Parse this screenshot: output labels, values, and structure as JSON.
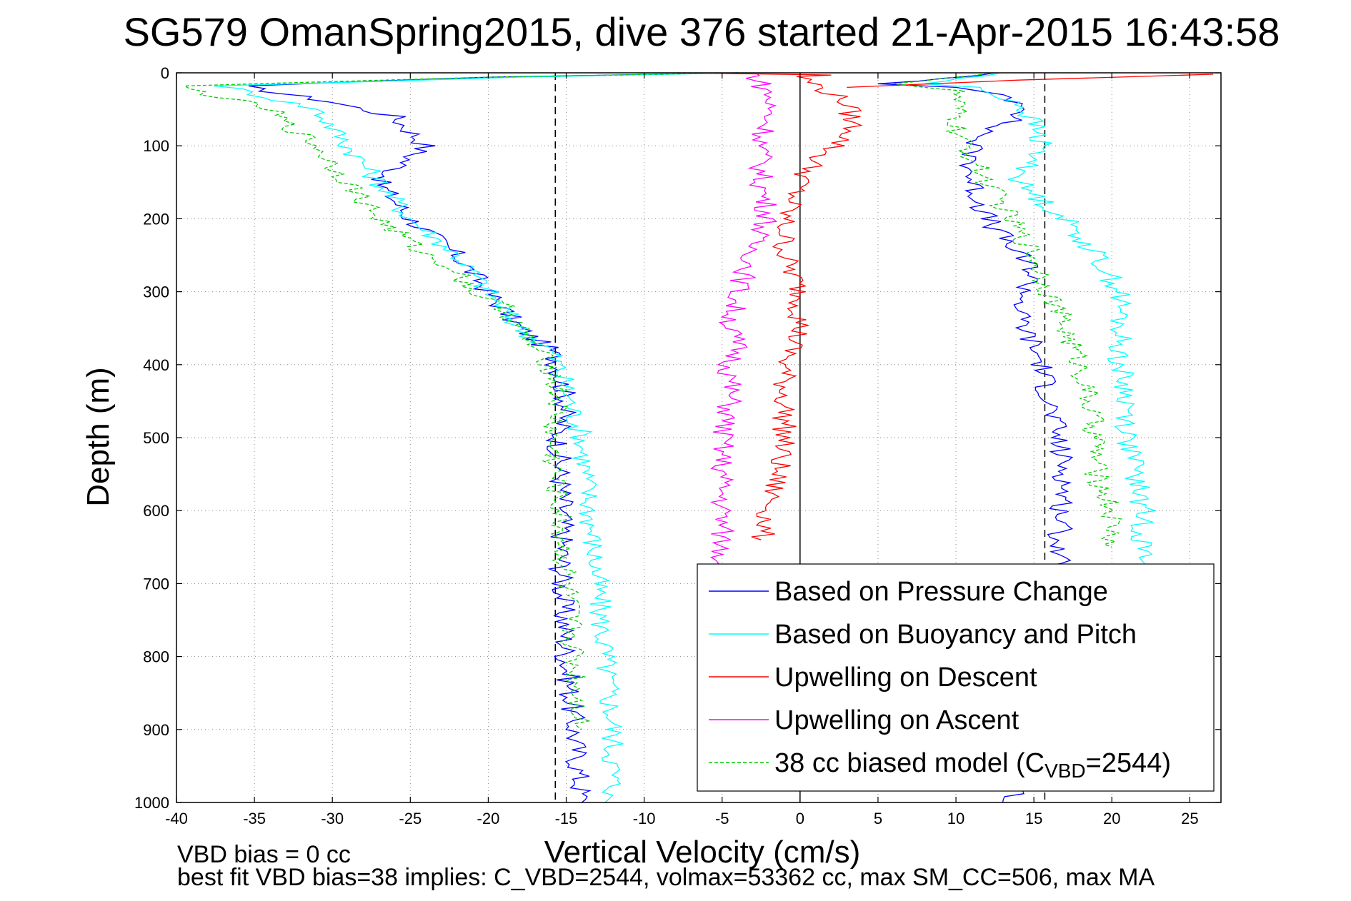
{
  "chart_data": {
    "type": "line",
    "title": "SG579 OmanSpring2015, dive 376 started 21-Apr-2015 16:43:58",
    "xlabel": "Vertical Velocity (cm/s)",
    "ylabel": "Depth (m)",
    "xlim": [
      -40,
      27
    ],
    "ylim": [
      0,
      1000
    ],
    "y_reversed": true,
    "grid": true,
    "x_ticks": [
      -40,
      -35,
      -30,
      -25,
      -20,
      -15,
      -10,
      -5,
      0,
      5,
      10,
      15,
      20,
      25
    ],
    "y_ticks": [
      0,
      100,
      200,
      300,
      400,
      500,
      600,
      700,
      800,
      900,
      1000
    ],
    "legend_position": "bottom-right",
    "reference_lines": [
      {
        "x": -15.7,
        "style": "dashed",
        "color": "#000000"
      },
      {
        "x": 15.7,
        "style": "dashed",
        "color": "#000000"
      },
      {
        "x": 0,
        "style": "solid",
        "color": "#000000"
      }
    ],
    "series": [
      {
        "name": "Based on Pressure Change",
        "color": "#0000ff",
        "style": "solid",
        "legs": [
          {
            "x": [
              -4,
              -20,
              -36,
              -30,
              -26,
              -24,
              -27,
              -25,
              -22,
              -20,
              -18,
              -16,
              -15.5,
              -15,
              -15.5,
              -15.2,
              -15.3,
              -15,
              -14.5,
              -14
            ],
            "y": [
              0,
              6,
              18,
              40,
              60,
              100,
              150,
              200,
              250,
              300,
              350,
              380,
              400,
              450,
              500,
              600,
              700,
              800,
              900,
              1000
            ]
          },
          {
            "x": [
              13,
              5,
              10,
              13,
              15,
              12,
              11,
              11,
              12,
              14,
              15,
              14,
              15.5,
              16,
              16.5,
              17,
              16.5,
              18,
              19,
              21,
              13
            ],
            "y": [
              0,
              15,
              20,
              30,
              50,
              80,
              100,
              150,
              200,
              250,
              270,
              330,
              400,
              450,
              500,
              550,
              680,
              700,
              800,
              900,
              1000
            ]
          }
        ]
      },
      {
        "name": "Based on Buoyancy and Pitch",
        "color": "#00ffff",
        "style": "solid",
        "legs": [
          {
            "x": [
              -4,
              -18,
              -37,
              -31,
              -30,
              -29,
              -27,
              -25,
              -22,
              -20,
              -18,
              -16,
              -15.5,
              -14,
              -13.5,
              -13,
              -12.5,
              -12,
              -12,
              -12.5
            ],
            "y": [
              0,
              6,
              18,
              50,
              75,
              100,
              150,
              200,
              250,
              300,
              350,
              380,
              400,
              500,
              600,
              700,
              800,
              900,
              990,
              1000
            ]
          },
          {
            "x": [
              13,
              8,
              11,
              14,
              15,
              15.5,
              14,
              17,
              19,
              20.5,
              20.5,
              21,
              21,
              22,
              22
            ],
            "y": [
              0,
              15,
              20,
              40,
              70,
              100,
              150,
              200,
              250,
              300,
              400,
              450,
              500,
              600,
              680
            ]
          }
        ]
      },
      {
        "name": "Upwelling on Descent",
        "color": "#ff0000",
        "style": "solid",
        "legs": [
          {
            "x": [
              -8,
              2,
              0,
              3,
              3.5,
              1,
              0,
              -1,
              -1,
              0,
              0,
              -1,
              -1,
              -1,
              -1.5,
              -2,
              -2.5
            ],
            "y": [
              0,
              3,
              5,
              40,
              80,
              120,
              150,
              200,
              250,
              300,
              350,
              400,
              450,
              500,
              550,
              600,
              640
            ]
          },
          {
            "x": [
              3,
              14,
              26.5
            ],
            "y": [
              20,
              10,
              2
            ]
          }
        ]
      },
      {
        "name": "Upwelling on Ascent",
        "color": "#ff00ff",
        "style": "solid",
        "legs": [
          {
            "x": [
              -3,
              -2,
              -2,
              -2.5,
              -2.5,
              -2,
              -3,
              -3,
              -4,
              -4.5,
              -4,
              -4.5,
              -4.5,
              -5,
              -5,
              -5,
              -5
            ],
            "y": [
              0,
              30,
              60,
              100,
              150,
              200,
              230,
              250,
              300,
              350,
              380,
              400,
              450,
              500,
              550,
              600,
              680
            ]
          }
        ]
      },
      {
        "name": "38 cc biased model (C",
        "name_sub": "VBD",
        "name_suffix": "=2544)",
        "color": "#00cc00",
        "style": "dashed",
        "legs": [
          {
            "x": [
              -4,
              -20,
              -40,
              -34,
              -33,
              -31,
              -29,
              -27,
              -24,
              -22,
              -21,
              -19,
              -18,
              -17,
              -16,
              -15.5,
              -16,
              -15.5,
              -15,
              -14.5,
              -14
            ],
            "y": [
              0,
              6,
              18,
              50,
              70,
              100,
              150,
              200,
              250,
              270,
              300,
              320,
              350,
              380,
              400,
              450,
              500,
              600,
              700,
              800,
              900
            ]
          },
          {
            "x": [
              13,
              6,
              10,
              10,
              12,
              15,
              16,
              17,
              18,
              18.5,
              19,
              19,
              20,
              20
            ],
            "y": [
              0,
              15,
              25,
              80,
              150,
              250,
              300,
              350,
              400,
              450,
              500,
              550,
              600,
              650
            ]
          }
        ]
      }
    ]
  },
  "footer": {
    "line1": "VBD bias = 0 cc",
    "line2": "best fit VBD bias=38 implies: C_VBD=2544, volmax=53362 cc, max SM_CC=506, max MA"
  }
}
